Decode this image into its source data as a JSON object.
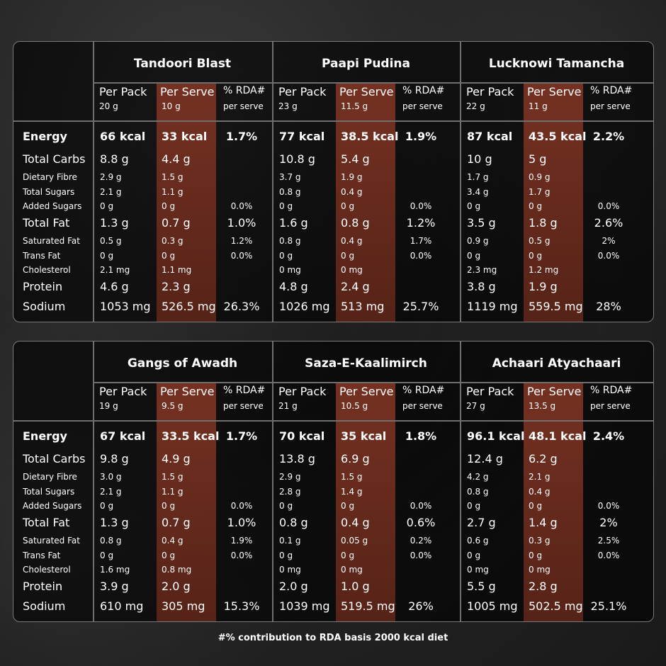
{
  "columns": {
    "per_pack": "Per Pack",
    "per_serve": "Per Serve",
    "rda": "% RDA#",
    "rda_sub": "per serve"
  },
  "rows": [
    {
      "label": "Energy",
      "style": "energy"
    },
    {
      "label": "Total Carbs",
      "style": "major"
    },
    {
      "label": "Dietary Fibre",
      "style": "minor"
    },
    {
      "label": "Total Sugars",
      "style": "minor"
    },
    {
      "label": "Added Sugars",
      "style": "minor"
    },
    {
      "label": "Total Fat",
      "style": "major"
    },
    {
      "label": "Saturated Fat",
      "style": "minor"
    },
    {
      "label": "Trans Fat",
      "style": "minor"
    },
    {
      "label": "Cholesterol",
      "style": "minor"
    },
    {
      "label": "Protein",
      "style": "major"
    },
    {
      "label": "Sodium",
      "style": "major"
    }
  ],
  "products": [
    {
      "name": "Tandoori Blast",
      "pack_weight": "20 g",
      "serve_weight": "10 g",
      "values": [
        [
          "66 kcal",
          "33 kcal",
          "1.7%"
        ],
        [
          "8.8 g",
          "4.4 g",
          ""
        ],
        [
          "2.9 g",
          "1.5 g",
          ""
        ],
        [
          "2.1 g",
          "1.1 g",
          ""
        ],
        [
          "0 g",
          "0 g",
          "0.0%"
        ],
        [
          "1.3 g",
          "0.7 g",
          "1.0%"
        ],
        [
          "0.5 g",
          "0.3 g",
          "1.2%"
        ],
        [
          "0 g",
          "0 g",
          "0.0%"
        ],
        [
          "2.1 mg",
          "1.1 mg",
          ""
        ],
        [
          "4.6 g",
          "2.3 g",
          ""
        ],
        [
          "1053 mg",
          "526.5 mg",
          "26.3%"
        ]
      ]
    },
    {
      "name": "Paapi Pudina",
      "pack_weight": "23 g",
      "serve_weight": "11.5 g",
      "values": [
        [
          "77 kcal",
          "38.5 kcal",
          "1.9%"
        ],
        [
          "10.8 g",
          "5.4 g",
          ""
        ],
        [
          "3.7 g",
          "1.9 g",
          ""
        ],
        [
          "0.8 g",
          "0.4 g",
          ""
        ],
        [
          "0 g",
          "0 g",
          "0.0%"
        ],
        [
          "1.6 g",
          "0.8 g",
          "1.2%"
        ],
        [
          "0.8 g",
          "0.4 g",
          "1.7%"
        ],
        [
          "0 g",
          "0 g",
          "0.0%"
        ],
        [
          "0 mg",
          "0 mg",
          ""
        ],
        [
          "4.8 g",
          "2.4 g",
          ""
        ],
        [
          "1026 mg",
          "513 mg",
          "25.7%"
        ]
      ]
    },
    {
      "name": "Lucknowi Tamancha",
      "pack_weight": "22 g",
      "serve_weight": "11 g",
      "values": [
        [
          "87 kcal",
          "43.5 kcal",
          "2.2%"
        ],
        [
          "10 g",
          "5 g",
          ""
        ],
        [
          "1.7 g",
          "0.9 g",
          ""
        ],
        [
          "3.4 g",
          "1.7 g",
          ""
        ],
        [
          "0 g",
          "0 g",
          "0.0%"
        ],
        [
          "3.5 g",
          "1.8 g",
          "2.6%"
        ],
        [
          "0.9 g",
          "0.5 g",
          "2%"
        ],
        [
          "0 g",
          "0 g",
          "0.0%"
        ],
        [
          "2.3 mg",
          "1.2 mg",
          ""
        ],
        [
          "3.8 g",
          "1.9 g",
          ""
        ],
        [
          "1119 mg",
          "559.5 mg",
          "28%"
        ]
      ]
    },
    {
      "name": "Gangs of Awadh",
      "pack_weight": "19 g",
      "serve_weight": "9.5 g",
      "values": [
        [
          "67 kcal",
          "33.5 kcal",
          "1.7%"
        ],
        [
          "9.8 g",
          "4.9 g",
          ""
        ],
        [
          "3.0 g",
          "1.5 g",
          ""
        ],
        [
          "2.1 g",
          "1.1 g",
          ""
        ],
        [
          "0 g",
          "0 g",
          "0.0%"
        ],
        [
          "1.3 g",
          "0.7 g",
          "1.0%"
        ],
        [
          "0.8 g",
          "0.4 g",
          "1.9%"
        ],
        [
          "0 g",
          "0 g",
          "0.0%"
        ],
        [
          "1.6 mg",
          "0.8 mg",
          ""
        ],
        [
          "3.9 g",
          "2.0 g",
          ""
        ],
        [
          "610 mg",
          "305 mg",
          "15.3%"
        ]
      ]
    },
    {
      "name": "Saza-E-Kaalimirch",
      "pack_weight": "21 g",
      "serve_weight": "10.5 g",
      "values": [
        [
          "70 kcal",
          "35 kcal",
          "1.8%"
        ],
        [
          "13.8 g",
          "6.9 g",
          ""
        ],
        [
          "2.9 g",
          "1.5 g",
          ""
        ],
        [
          "2.8 g",
          "1.4 g",
          ""
        ],
        [
          "0 g",
          "0 g",
          "0.0%"
        ],
        [
          "0.8 g",
          "0.4 g",
          "0.6%"
        ],
        [
          "0.1 g",
          "0.05 g",
          "0.2%"
        ],
        [
          "0 g",
          "0 g",
          "0.0%"
        ],
        [
          "0 mg",
          "0 mg",
          ""
        ],
        [
          "2.0 g",
          "1.0 g",
          ""
        ],
        [
          "1039 mg",
          "519.5 mg",
          "26%"
        ]
      ]
    },
    {
      "name": "Achaari Atyachaari",
      "pack_weight": "27 g",
      "serve_weight": "13.5 g",
      "values": [
        [
          "96.1 kcal",
          "48.1 kcal",
          "2.4%"
        ],
        [
          "12.4 g",
          "6.2 g",
          ""
        ],
        [
          "4.2 g",
          "2.1 g",
          ""
        ],
        [
          "0.8 g",
          "0.4 g",
          ""
        ],
        [
          "0 g",
          "0 g",
          "0.0%"
        ],
        [
          "2.7 g",
          "1.4 g",
          "2%"
        ],
        [
          "0.6 g",
          "0.3 g",
          "2.5%"
        ],
        [
          "0 g",
          "0 g",
          "0.0%"
        ],
        [
          "0 mg",
          "0 mg",
          ""
        ],
        [
          "5.5 g",
          "2.8 g",
          ""
        ],
        [
          "1005 mg",
          "502.5 mg",
          "25.1%"
        ]
      ]
    }
  ],
  "footnote": "#% contribution to RDA basis 2000 kcal diet"
}
